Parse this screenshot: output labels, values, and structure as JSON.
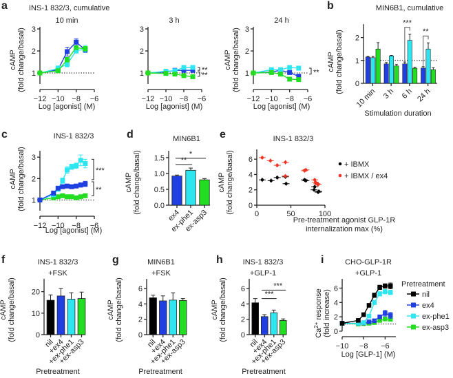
{
  "colors": {
    "nil": "#000000",
    "ex4": "#1f3fe0",
    "ex_phe1": "#2fe6f0",
    "ex_asp3": "#22dd22",
    "ibmx": "#000000",
    "ibmx_ex4": "#ee3322"
  },
  "chart_data": [
    {
      "panel": "a",
      "type": "line",
      "title": "INS-1 832/3, cumulative",
      "subtitle": "10 min",
      "xlabel": "Log [agonist] (M)",
      "ylabel": "cAMP (fold change/basal)",
      "xlim": [
        -12,
        -6
      ],
      "ylim": [
        0.5,
        3
      ],
      "xticks": [
        -12,
        -10,
        -8,
        -6
      ],
      "yticks": [
        1,
        2,
        3
      ],
      "baseline": 1,
      "x": [
        -12,
        -10,
        -9,
        -8,
        -7
      ],
      "series": [
        {
          "name": "ex4",
          "values": [
            1.0,
            1.15,
            1.97,
            2.4,
            2.05
          ],
          "err": [
            0.03,
            0.1,
            0.2,
            0.15,
            0.12
          ]
        },
        {
          "name": "ex-phe1",
          "values": [
            1.0,
            1.2,
            1.4,
            2.0,
            2.1
          ],
          "err": [
            0.03,
            0.12,
            0.12,
            0.1,
            0.15
          ]
        },
        {
          "name": "ex-asp3",
          "values": [
            1.0,
            1.1,
            1.6,
            2.15,
            2.1
          ],
          "err": [
            0.03,
            0.08,
            0.1,
            0.08,
            0.1
          ]
        }
      ]
    },
    {
      "panel": "a",
      "type": "line",
      "subtitle": "3 h",
      "xlabel": "Log [agonist] (M)",
      "xlim": [
        -12,
        -6
      ],
      "ylim": [
        0.5,
        3
      ],
      "xticks": [
        -12,
        -10,
        -8,
        -6
      ],
      "yticks": [
        1,
        2,
        3
      ],
      "baseline": 1,
      "x": [
        -12,
        -10,
        -9,
        -8,
        -7
      ],
      "series": [
        {
          "name": "ex4",
          "values": [
            1.0,
            1.05,
            1.12,
            1.12,
            1.12
          ],
          "err": [
            0.02,
            0.03,
            0.04,
            0.05,
            0.05
          ]
        },
        {
          "name": "ex-phe1",
          "values": [
            1.0,
            1.08,
            1.1,
            1.25,
            1.25
          ],
          "err": [
            0.02,
            0.03,
            0.03,
            0.05,
            0.05
          ]
        },
        {
          "name": "ex-asp3",
          "values": [
            1.0,
            0.98,
            0.95,
            0.88,
            0.83
          ],
          "err": [
            0.02,
            0.03,
            0.03,
            0.04,
            0.04
          ]
        }
      ],
      "annotations": [
        "**",
        "**"
      ]
    },
    {
      "panel": "a",
      "type": "line",
      "subtitle": "24 h",
      "xlabel": "Log [agonist] (M)",
      "ylabel": "cAMP (fold change/basal)",
      "xlim": [
        -12,
        -6
      ],
      "ylim": [
        0.5,
        3
      ],
      "xticks": [
        -12,
        -10,
        -8,
        -6
      ],
      "yticks": [
        1,
        2,
        3
      ],
      "baseline": 1,
      "x": [
        -12,
        -10,
        -9,
        -8,
        -7
      ],
      "series": [
        {
          "name": "ex4",
          "values": [
            1.0,
            1.05,
            1.12,
            1.02,
            0.85
          ],
          "err": [
            0.02,
            0.04,
            0.04,
            0.04,
            0.05
          ]
        },
        {
          "name": "ex-phe1",
          "values": [
            1.0,
            1.15,
            1.15,
            1.25,
            1.22
          ],
          "err": [
            0.02,
            0.03,
            0.03,
            0.04,
            0.04
          ]
        },
        {
          "name": "ex-asp3",
          "values": [
            1.0,
            1.02,
            0.95,
            0.72,
            0.7
          ],
          "err": [
            0.02,
            0.03,
            0.03,
            0.03,
            0.03
          ]
        }
      ],
      "annotations": [
        "**"
      ]
    },
    {
      "panel": "b",
      "type": "bar",
      "title": "MIN6B1, cumulative",
      "xlabel": "Stimulation duration",
      "ylabel": "cAMP (fold change/basal)",
      "ylim": [
        0,
        2.5
      ],
      "yticks": [
        0,
        1,
        2
      ],
      "baseline": 1,
      "categories": [
        "10 min",
        "3 h",
        "6 h",
        "24 h"
      ],
      "series": [
        {
          "name": "ex4",
          "values": [
            1.15,
            0.85,
            0.85,
            0.67
          ],
          "err": [
            0.03,
            0.06,
            0.08,
            0.06
          ]
        },
        {
          "name": "ex-phe1",
          "values": [
            1.12,
            1.2,
            1.88,
            1.5
          ],
          "err": [
            0.06,
            0.02,
            0.27,
            0.27
          ]
        },
        {
          "name": "ex-asp3",
          "values": [
            1.5,
            0.76,
            0.66,
            0.6
          ],
          "err": [
            0.28,
            0.06,
            0.04,
            0.08
          ]
        }
      ],
      "annotations": [
        {
          "category": "6 h",
          "text": "***"
        },
        {
          "category": "24 h",
          "text": "**"
        }
      ]
    },
    {
      "panel": "c",
      "type": "line",
      "title": "INS-1 832/3",
      "xlabel": "Log [agonist] (M)",
      "ylabel": "cAMP (fold change/basal)",
      "xlim": [
        -12,
        -6
      ],
      "ylim": [
        0.5,
        3.2
      ],
      "xticks": [
        -12,
        -10,
        -8,
        -6
      ],
      "yticks": [
        1,
        2,
        3
      ],
      "baseline": 1,
      "x": [
        -12,
        -10.5,
        -10,
        -9.5,
        -9,
        -8.5,
        -8,
        -7.5,
        -7
      ],
      "series": [
        {
          "name": "ex4",
          "values": [
            1.0,
            1.32,
            1.55,
            1.62,
            1.65,
            1.62,
            1.65,
            1.7,
            1.75
          ],
          "err": [
            0.03,
            0.1,
            0.08,
            0.08,
            0.08,
            0.06,
            0.08,
            0.1,
            0.12
          ]
        },
        {
          "name": "ex-phe1",
          "values": [
            1.0,
            1.25,
            1.5,
            1.9,
            2.4,
            2.55,
            2.6,
            2.85,
            2.7
          ],
          "err": [
            0.03,
            0.1,
            0.1,
            0.12,
            0.15,
            0.12,
            0.12,
            0.25,
            0.2
          ]
        },
        {
          "name": "ex-asp3",
          "values": [
            1.0,
            1.1,
            1.15,
            1.2,
            1.15,
            1.15,
            1.1,
            1.15,
            1.2
          ],
          "err": [
            0.03,
            0.05,
            0.05,
            0.05,
            0.05,
            0.05,
            0.05,
            0.05,
            0.06
          ]
        }
      ],
      "annotations": [
        "***",
        "**"
      ]
    },
    {
      "panel": "d",
      "type": "bar",
      "title": "MIN6B1",
      "ylabel": "cAMP (fold change/basal)",
      "ylim": [
        0,
        1.65
      ],
      "yticks": [
        0.0,
        0.5,
        1.0,
        1.5
      ],
      "ytick_labels": [
        "0.0",
        "0.5",
        "1.0",
        "1.5"
      ],
      "categories": [
        "ex4",
        "ex-phe1",
        "ex-asp3"
      ],
      "values": [
        0.92,
        1.1,
        0.8
      ],
      "err": [
        0.03,
        0.07,
        0.04
      ],
      "series_colors": [
        "ex4",
        "ex_phe1",
        "ex_asp3"
      ],
      "annotations": [
        {
          "from": "ex4",
          "to": "ex-asp3",
          "text": "*"
        },
        {
          "from": "ex4",
          "to": "ex-phe1",
          "text": "**"
        }
      ]
    },
    {
      "panel": "e",
      "type": "scatter",
      "title": "INS-1 832/3",
      "xlabel": "Pre-treatment agonist GLP-1R internalization max (%)",
      "ylabel": "cAMP (fold change/basal)",
      "xlim": [
        0,
        100
      ],
      "ylim": [
        0,
        7
      ],
      "xticks": [
        0,
        50,
        100
      ],
      "yticks": [
        0,
        2,
        4,
        6
      ],
      "legend": [
        "+ IBMX",
        "+ IBMX / ex4"
      ],
      "legend_position": "right",
      "series": [
        {
          "name": "+ IBMX",
          "points": [
            [
              8,
              3.3
            ],
            [
              21,
              3.2
            ],
            [
              30,
              3.6
            ],
            [
              42,
              3.7
            ],
            [
              43,
              2.8
            ],
            [
              70,
              3.3
            ],
            [
              72,
              3.2
            ],
            [
              84,
              2.0
            ],
            [
              85,
              2.4
            ],
            [
              90,
              1.7
            ],
            [
              91,
              1.8
            ]
          ]
        },
        {
          "name": "+ IBMX / ex4",
          "points": [
            [
              8,
              6.2
            ],
            [
              20,
              5.8
            ],
            [
              30,
              5.2
            ],
            [
              42,
              5.6
            ],
            [
              42,
              3.8
            ],
            [
              70,
              4.5
            ],
            [
              72,
              4.6
            ],
            [
              85,
              3.3
            ],
            [
              86,
              3.0
            ],
            [
              88,
              2.8
            ],
            [
              90,
              2.7
            ]
          ]
        }
      ]
    },
    {
      "panel": "f",
      "type": "bar",
      "title": "INS-1 832/3",
      "subtitle": "+FSK",
      "xlabel": "Pretreatment",
      "ylabel": "cAMP (fold change/basal)",
      "ylim": [
        0,
        25
      ],
      "yticks": [
        0,
        10,
        20
      ],
      "categories": [
        "nil",
        "+ex4",
        "+ex-phe1",
        "+ex-asp3"
      ],
      "values": [
        16,
        18,
        16.5,
        16.8
      ],
      "err": [
        2.5,
        3.5,
        3.0,
        3.0
      ],
      "series_colors": [
        "nil",
        "ex4",
        "ex_phe1",
        "ex_asp3"
      ]
    },
    {
      "panel": "g",
      "type": "bar",
      "title": "MIN6B1",
      "subtitle": "+FSK",
      "xlabel": "Pretreatment",
      "ylabel": "cAMP (fold change/basal)",
      "ylim": [
        0,
        7
      ],
      "yticks": [
        0,
        2,
        4,
        6
      ],
      "categories": [
        "nil",
        "+ex4",
        "+ex-phe1",
        "+ex-asp3"
      ],
      "values": [
        4.8,
        4.4,
        4.5,
        4.45
      ],
      "err": [
        0.35,
        0.65,
        0.95,
        0.25
      ],
      "series_colors": [
        "nil",
        "ex4",
        "ex_phe1",
        "ex_asp3"
      ]
    },
    {
      "panel": "h",
      "type": "bar",
      "title": "INS-1 832/3",
      "subtitle": "+GLP-1",
      "xlabel": "Pretreatment",
      "ylabel": "cAMP (fold change/basal)",
      "ylim": [
        0,
        7
      ],
      "yticks": [
        0,
        2,
        4,
        6
      ],
      "categories": [
        "nil",
        "+ex4",
        "+ex-phe1",
        "+ex-asp3"
      ],
      "values": [
        4.15,
        2.35,
        2.85,
        1.85
      ],
      "err": [
        0.55,
        0.25,
        0.35,
        0.2
      ],
      "series_colors": [
        "nil",
        "ex4",
        "ex_phe1",
        "ex_asp3"
      ],
      "annotations": [
        {
          "from": "+ex4",
          "to": "+ex-phe1",
          "text": "***"
        },
        {
          "from": "+ex4",
          "to": "+ex-asp3",
          "text": "***"
        }
      ]
    },
    {
      "panel": "i",
      "type": "line",
      "title": "CHO-GLP-1R",
      "subtitle": "+GLP-1",
      "xlabel": "Log [GLP-1] (M)",
      "ylabel": "Ca2+ response (fold increase)",
      "xlim": [
        -10,
        -5
      ],
      "ylim": [
        0,
        7
      ],
      "xticks": [
        -10,
        -8,
        -6
      ],
      "yticks": [
        0,
        2,
        4,
        6
      ],
      "baseline": 1,
      "legend_title": "Pretreatment",
      "legend": [
        "nil",
        "ex4",
        "ex-phe1",
        "ex-asp3"
      ],
      "legend_position": "right",
      "x": [
        -10,
        -8.5,
        -8,
        -7.5,
        -7,
        -6.5,
        -6,
        -5.5
      ],
      "series": [
        {
          "name": "nil",
          "values": [
            1.1,
            1.5,
            2.3,
            3.6,
            5.0,
            6.1,
            6.3,
            6.3
          ],
          "err": [
            0.1,
            0.1,
            0.15,
            0.2,
            0.3,
            0.3,
            0.3,
            0.4
          ]
        },
        {
          "name": "ex4",
          "values": [
            1.1,
            1.1,
            1.15,
            1.3,
            1.45,
            2.0,
            2.5,
            2.2
          ],
          "err": [
            0.1,
            0.05,
            0.05,
            0.1,
            0.1,
            0.2,
            0.4,
            0.4
          ]
        },
        {
          "name": "ex-phe1",
          "values": [
            1.1,
            1.1,
            1.2,
            2.1,
            4.0,
            5.2,
            5.5,
            5.4
          ],
          "err": [
            0.1,
            0.05,
            0.1,
            0.2,
            0.3,
            0.3,
            0.3,
            0.3
          ]
        },
        {
          "name": "ex-asp3",
          "values": [
            1.1,
            1.0,
            1.05,
            1.1,
            1.2,
            1.5,
            1.7,
            1.65
          ],
          "err": [
            0.1,
            0.05,
            0.05,
            0.05,
            0.1,
            0.15,
            0.15,
            0.15
          ]
        }
      ]
    }
  ],
  "panel_labels": [
    "a",
    "b",
    "c",
    "d",
    "e",
    "f",
    "g",
    "h",
    "i"
  ]
}
